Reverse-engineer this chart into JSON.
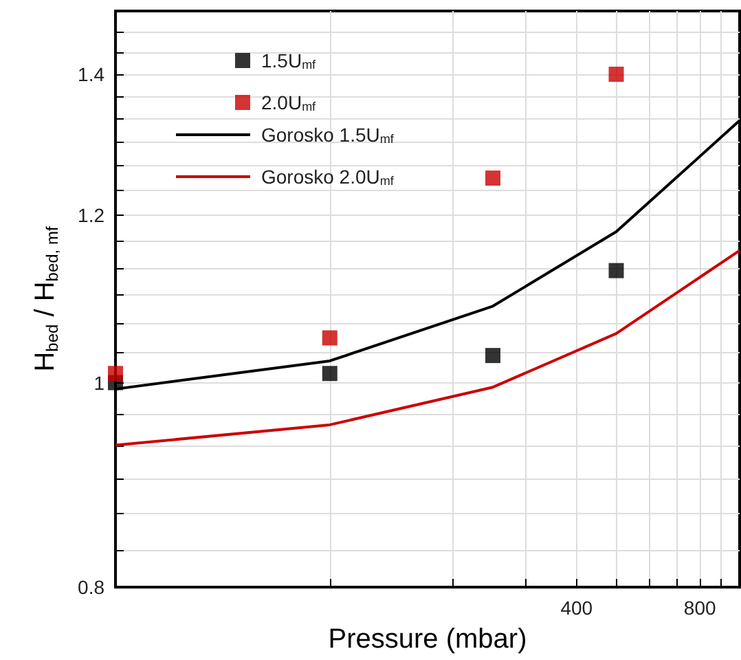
{
  "chart_data": {
    "type": "scatter",
    "xlabel": "Pressure (mbar)",
    "ylabel": "H$_{bed}$ / H$_{bed, mf}$",
    "log": "xy",
    "grid": true,
    "legend": "top left",
    "marker": "square",
    "xlim": [
      30,
      1000
    ],
    "ylim": [
      0.8,
      1.5
    ],
    "xticks": [
      {
        "value": 100,
        "label": null
      },
      {
        "value": 200,
        "label": null
      },
      {
        "value": 300,
        "label": null
      },
      400,
      {
        "value": 500,
        "label": null
      },
      {
        "value": 600,
        "label": null
      },
      {
        "value": 700,
        "label": null
      },
      800,
      {
        "value": 900,
        "label": null
      }
    ],
    "yticks": [
      0.8,
      {
        "value": 0.8333,
        "label": null
      },
      {
        "value": 0.8667,
        "label": null
      },
      {
        "value": 0.9,
        "label": null
      },
      {
        "value": 0.9333,
        "label": null
      },
      {
        "value": 0.9667,
        "label": null
      },
      1,
      {
        "value": 1.0333,
        "label": null
      },
      {
        "value": 1.0667,
        "label": null
      },
      {
        "value": 1.1,
        "label": null
      },
      {
        "value": 1.1333,
        "label": null
      },
      {
        "value": 1.1667,
        "label": null
      },
      1.2,
      {
        "value": 1.2333,
        "label": null
      },
      {
        "value": 1.2667,
        "label": null
      },
      {
        "value": 1.3,
        "label": null
      },
      {
        "value": 1.3333,
        "label": null
      },
      {
        "value": 1.3667,
        "label": null
      },
      1.4,
      {
        "value": 1.4333,
        "label": null
      },
      {
        "value": 1.4667,
        "label": null
      }
    ],
    "series": [
      {
        "name": "1.5U$_{mf}$",
        "color": "#000000",
        "x": [
          30,
          100,
          250,
          500
        ],
        "values": [
          1.0,
          1.01,
          1.03,
          1.13
        ]
      },
      {
        "name": "2.0U$_{mf}$",
        "color": "#cc0000",
        "x": [
          30,
          100,
          250,
          500
        ],
        "values": [
          1.01,
          1.05,
          1.25,
          1.4
        ]
      },
      {
        "name": "Gorosko 1.5U$_{mf}$",
        "type": "line",
        "marker": "none",
        "color": "#000000",
        "x": [
          30,
          100,
          250,
          500,
          1000
        ],
        "values": [
          0.993,
          1.024,
          1.087,
          1.179,
          1.331
        ]
      },
      {
        "name": "Gorosko 2.0U$_{mf}$",
        "type": "line",
        "marker": "none",
        "color": "#cc0000",
        "x": [
          30,
          100,
          250,
          500,
          1000
        ],
        "values": [
          0.934,
          0.955,
          0.995,
          1.055,
          1.155
        ]
      }
    ]
  }
}
